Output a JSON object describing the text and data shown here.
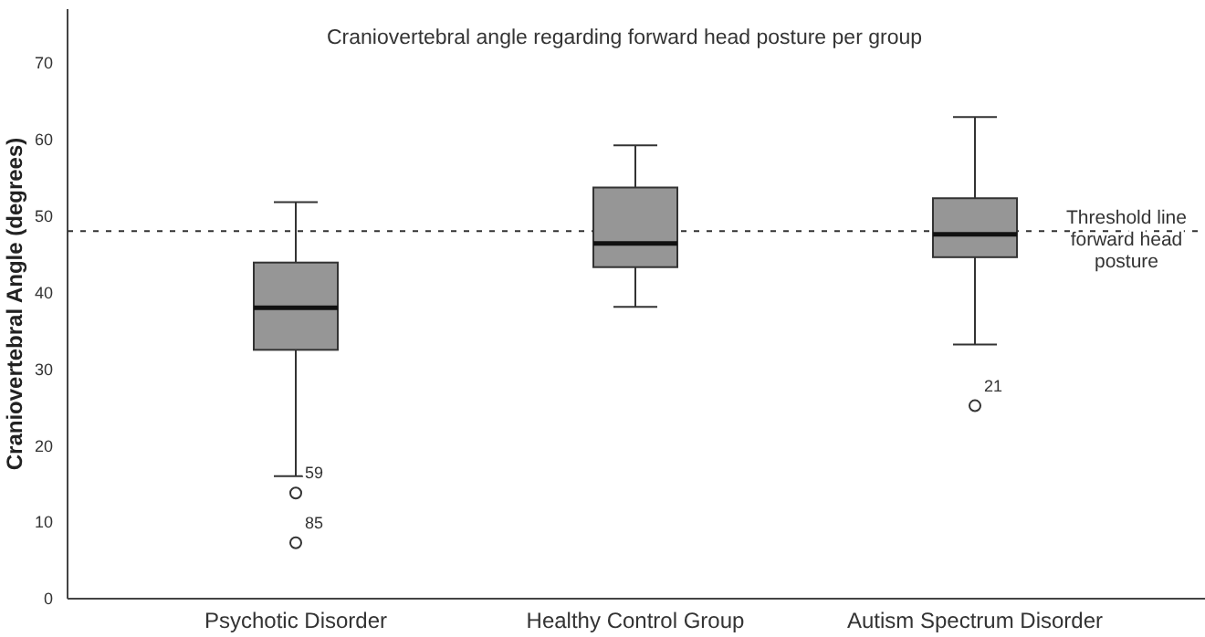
{
  "chart_data": {
    "type": "box",
    "title": "Craniovertebral angle regarding forward head posture per group",
    "ylabel": "Craniovertebral Angle (degrees)",
    "categories": [
      "Psychotic Disorder",
      "Healthy Control Group",
      "Autism Spectrum Disorder"
    ],
    "color": "#969696",
    "boxes": [
      {
        "low": 16,
        "q1": 32.5,
        "median": 38,
        "q3": 43.9,
        "high": 51.8,
        "outliers": [
          13.8,
          7.3
        ]
      },
      {
        "low": 38.1,
        "q1": 43.3,
        "median": 46.4,
        "q3": 53.7,
        "high": 59.2
      },
      {
        "low": 33.2,
        "q1": 44.6,
        "median": 47.6,
        "q3": 52.3,
        "high": 62.9,
        "outliers": [
          25.2
        ]
      }
    ],
    "ylim": [
      0,
      77
    ],
    "yticks": [
      0,
      10,
      20,
      30,
      40,
      50,
      60,
      70
    ],
    "ref_lines": [
      {
        "axis": "y",
        "value": 48,
        "label": "Threshold line forward head posture",
        "line_style": "dotted"
      }
    ],
    "annotations": [
      "59",
      "85",
      "21"
    ],
    "grid": false
  }
}
